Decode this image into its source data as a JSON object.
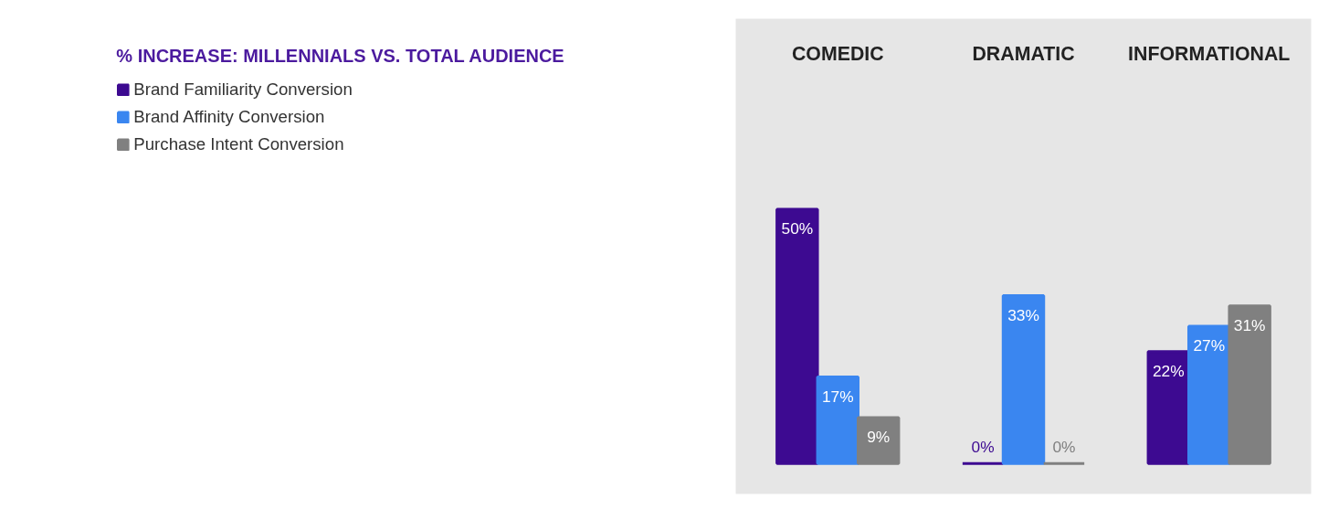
{
  "chart_data": {
    "type": "bar",
    "title": "% INCREASE: MILLENNIALS VS. TOTAL AUDIENCE",
    "categories": [
      "COMEDIC",
      "DRAMATIC",
      "INFORMATIONAL"
    ],
    "series": [
      {
        "name": "Brand Familiarity Conversion",
        "color": "#3d0a91",
        "values": [
          50,
          0,
          22
        ],
        "value_labels": [
          "50%",
          "0%",
          "22%"
        ]
      },
      {
        "name": "Brand Affinity Conversion",
        "color": "#3a86f0",
        "values": [
          17,
          33,
          27
        ],
        "value_labels": [
          "17%",
          "33%",
          "27%"
        ]
      },
      {
        "name": "Purchase Intent Conversion",
        "color": "#808080",
        "values": [
          9,
          0,
          31
        ],
        "value_labels": [
          "9%",
          "0%",
          "31%"
        ]
      }
    ],
    "legend": "left"
  }
}
